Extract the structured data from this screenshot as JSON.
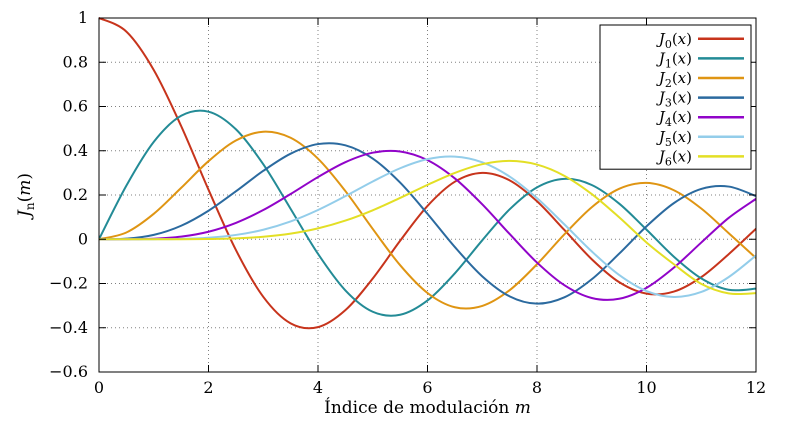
{
  "figure": {
    "background": "#ffffff",
    "border_color": "#000000",
    "grid_color": "#808080"
  },
  "chart_data": {
    "type": "line",
    "title": "",
    "xlabel": {
      "text": "Índice de modulación",
      "math_var": "m"
    },
    "ylabel": {
      "base": "J",
      "sub": "n",
      "arg": "m"
    },
    "xlim": [
      0,
      12
    ],
    "ylim": [
      -0.6,
      1
    ],
    "grid": true,
    "legend": {
      "position": "top-right",
      "border": true
    },
    "xticks": {
      "values": [
        0,
        2,
        4,
        6,
        8,
        10,
        12
      ],
      "labels": [
        "0",
        "2",
        "4",
        "6",
        "8",
        "10",
        "12"
      ]
    },
    "yticks": {
      "values": [
        -0.6,
        -0.4,
        -0.2,
        0,
        0.2,
        0.4,
        0.6,
        0.8,
        1
      ],
      "labels": [
        "−0.6",
        "−0.4",
        "−0.2",
        "0",
        "0.2",
        "0.4",
        "0.6",
        "0.8",
        "1"
      ]
    },
    "x": [
      0,
      0.5,
      1,
      1.5,
      2,
      2.5,
      3,
      3.5,
      4,
      4.5,
      5,
      5.5,
      6,
      6.5,
      7,
      7.5,
      8,
      8.5,
      9,
      9.5,
      10,
      10.5,
      11,
      11.5,
      12
    ],
    "series": [
      {
        "label_plain": "J0(x)",
        "label": {
          "base": "J",
          "sub": "0",
          "arg": "x"
        },
        "color": "#c7341c",
        "values": [
          1.0,
          0.9385,
          0.7652,
          0.5118,
          0.2239,
          -0.0484,
          -0.2601,
          -0.3801,
          -0.3971,
          -0.3205,
          -0.1776,
          -0.0068,
          0.1506,
          0.2601,
          0.3001,
          0.2663,
          0.1717,
          0.0419,
          -0.0903,
          -0.1939,
          -0.2459,
          -0.2366,
          -0.1712,
          -0.0677,
          0.0477
        ]
      },
      {
        "label_plain": "J1(x)",
        "label": {
          "base": "J",
          "sub": "1",
          "arg": "x"
        },
        "color": "#238b96",
        "values": [
          0,
          0.2423,
          0.4401,
          0.5579,
          0.5767,
          0.4971,
          0.3391,
          0.1374,
          -0.066,
          -0.2311,
          -0.3276,
          -0.3414,
          -0.2767,
          -0.1538,
          -0.0047,
          0.1352,
          0.2346,
          0.2731,
          0.2453,
          0.1613,
          0.0435,
          -0.0789,
          -0.1768,
          -0.2284,
          -0.2234
        ]
      },
      {
        "label_plain": "J2(x)",
        "label": {
          "base": "J",
          "sub": "2",
          "arg": "x"
        },
        "color": "#df9513",
        "values": [
          0,
          0.0306,
          0.1149,
          0.2321,
          0.3528,
          0.4461,
          0.4861,
          0.4586,
          0.3641,
          0.2178,
          0.0466,
          -0.1173,
          -0.2429,
          -0.3074,
          -0.3014,
          -0.2303,
          -0.113,
          0.0223,
          0.1448,
          0.2279,
          0.2546,
          0.2216,
          0.139,
          0.0279,
          -0.0849
        ]
      },
      {
        "label_plain": "J3(x)",
        "label": {
          "base": "J",
          "sub": "3",
          "arg": "x"
        },
        "color": "#2b6a9f",
        "values": [
          0,
          0.0026,
          0.0196,
          0.061,
          0.1289,
          0.2166,
          0.3091,
          0.3868,
          0.4302,
          0.4247,
          0.3648,
          0.2561,
          0.1148,
          -0.0353,
          -0.1676,
          -0.2581,
          -0.2911,
          -0.2626,
          -0.1809,
          -0.0653,
          0.0584,
          0.1633,
          0.2273,
          0.2381,
          0.1951
        ]
      },
      {
        "label_plain": "J4(x)",
        "label": {
          "base": "J",
          "sub": "4",
          "arg": "x"
        },
        "color": "#9104c9",
        "values": [
          0,
          0.0002,
          0.0025,
          0.0118,
          0.034,
          0.0738,
          0.132,
          0.2044,
          0.2811,
          0.3484,
          0.3912,
          0.3967,
          0.3576,
          0.2748,
          0.1578,
          0.0238,
          -0.1054,
          -0.2077,
          -0.2655,
          -0.2691,
          -0.2196,
          -0.1283,
          -0.015,
          0.0963,
          0.1825
        ]
      },
      {
        "label_plain": "J5(x)",
        "label": {
          "base": "J",
          "sub": "5",
          "arg": "x"
        },
        "color": "#93cdea",
        "values": [
          0,
          0.0,
          0.0002,
          0.0018,
          0.007,
          0.0195,
          0.043,
          0.0804,
          0.1321,
          0.1947,
          0.2611,
          0.3209,
          0.3621,
          0.3736,
          0.3479,
          0.2835,
          0.1858,
          0.0671,
          -0.055,
          -0.1613,
          -0.2341,
          -0.2611,
          -0.2383,
          -0.1711,
          -0.0735
        ]
      },
      {
        "label_plain": "J6(x)",
        "label": {
          "base": "J",
          "sub": "6",
          "arg": "x"
        },
        "color": "#e3df25",
        "values": [
          0,
          0.0,
          0.0,
          0.0002,
          0.0012,
          0.0042,
          0.0114,
          0.0254,
          0.0491,
          0.0843,
          0.131,
          0.1868,
          0.2458,
          0.2999,
          0.3392,
          0.3541,
          0.3376,
          0.2867,
          0.2043,
          0.0993,
          -0.0145,
          -0.113,
          -0.2016,
          -0.2445,
          -0.2437
        ]
      }
    ]
  }
}
